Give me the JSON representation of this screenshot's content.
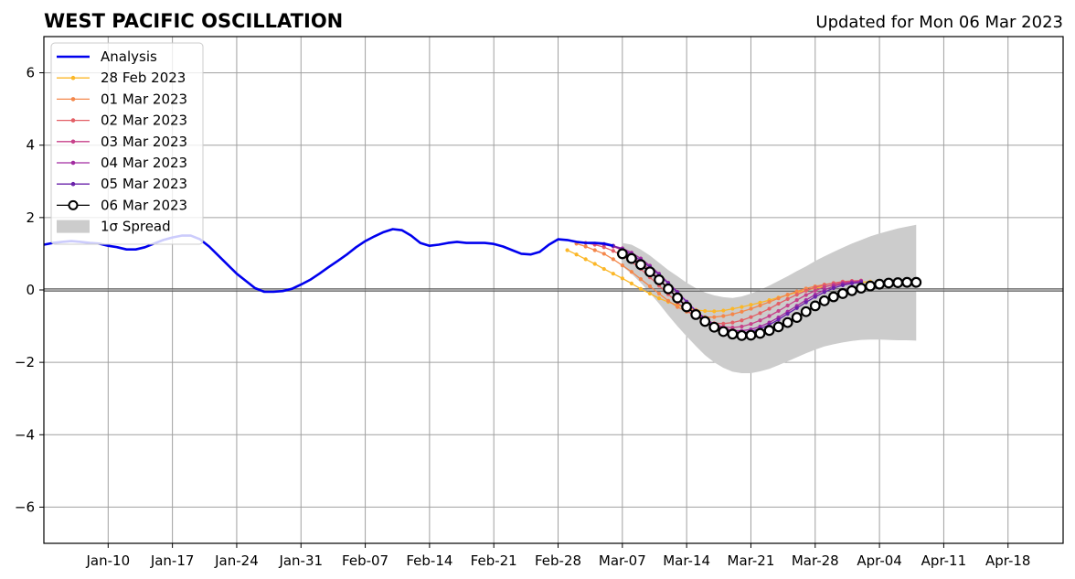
{
  "chart_data": {
    "type": "line",
    "title": "WEST PACIFIC OSCILLATION",
    "subtitle": "Updated for Mon 06 Mar 2023",
    "xlabel": "",
    "ylabel": "",
    "ylim": [
      -7,
      7
    ],
    "yticks": [
      -6,
      -4,
      -2,
      0,
      2,
      4,
      6
    ],
    "ytick_labels": [
      "−6",
      "−4",
      "−2",
      "0",
      "2",
      "4",
      "6"
    ],
    "xlim": [
      "2023-01-03",
      "2023-04-24"
    ],
    "xticks": [
      "2023-01-10",
      "2023-01-17",
      "2023-01-24",
      "2023-01-31",
      "2023-02-07",
      "2023-02-14",
      "2023-02-21",
      "2023-02-28",
      "2023-03-07",
      "2023-03-14",
      "2023-03-21",
      "2023-03-28",
      "2023-04-04",
      "2023-04-11",
      "2023-04-18"
    ],
    "xtick_labels": [
      "Jan-10",
      "Jan-17",
      "Jan-24",
      "Jan-31",
      "Feb-07",
      "Feb-14",
      "Feb-21",
      "Feb-28",
      "Mar-07",
      "Mar-14",
      "Mar-21",
      "Mar-28",
      "Apr-04",
      "Apr-11",
      "Apr-18"
    ],
    "grid": true,
    "legend_position": "top-left",
    "legend": [
      "Analysis",
      "28 Feb 2023",
      "01 Mar 2023",
      "02 Mar 2023",
      "03 Mar 2023",
      "04 Mar 2023",
      "05 Mar 2023",
      "06 Mar 2023",
      "1σ Spread"
    ],
    "analysis": {
      "name": "Analysis",
      "color": "#0000ee",
      "x": [
        "2023-01-03",
        "2023-01-04",
        "2023-01-05",
        "2023-01-06",
        "2023-01-07",
        "2023-01-08",
        "2023-01-09",
        "2023-01-10",
        "2023-01-11",
        "2023-01-12",
        "2023-01-13",
        "2023-01-14",
        "2023-01-15",
        "2023-01-16",
        "2023-01-17",
        "2023-01-18",
        "2023-01-19",
        "2023-01-20",
        "2023-01-21",
        "2023-01-22",
        "2023-01-23",
        "2023-01-24",
        "2023-01-25",
        "2023-01-26",
        "2023-01-27",
        "2023-01-28",
        "2023-01-29",
        "2023-01-30",
        "2023-01-31",
        "2023-02-01",
        "2023-02-02",
        "2023-02-03",
        "2023-02-04",
        "2023-02-05",
        "2023-02-06",
        "2023-02-07",
        "2023-02-08",
        "2023-02-09",
        "2023-02-10",
        "2023-02-11",
        "2023-02-12",
        "2023-02-13",
        "2023-02-14",
        "2023-02-15",
        "2023-02-16",
        "2023-02-17",
        "2023-02-18",
        "2023-02-19",
        "2023-02-20",
        "2023-02-21",
        "2023-02-22",
        "2023-02-23",
        "2023-02-24",
        "2023-02-25",
        "2023-02-26",
        "2023-02-27",
        "2023-02-28",
        "2023-03-01",
        "2023-03-02",
        "2023-03-03",
        "2023-03-04",
        "2023-03-05",
        "2023-03-06"
      ],
      "values": [
        1.25,
        1.3,
        1.33,
        1.35,
        1.33,
        1.3,
        1.28,
        1.22,
        1.18,
        1.12,
        1.12,
        1.18,
        1.28,
        1.38,
        1.45,
        1.5,
        1.5,
        1.4,
        1.2,
        0.95,
        0.7,
        0.45,
        0.25,
        0.05,
        -0.05,
        -0.05,
        -0.03,
        0.03,
        0.15,
        0.28,
        0.45,
        0.63,
        0.8,
        0.98,
        1.18,
        1.35,
        1.48,
        1.6,
        1.68,
        1.65,
        1.5,
        1.3,
        1.22,
        1.25,
        1.3,
        1.33,
        1.3,
        1.3,
        1.3,
        1.27,
        1.2,
        1.1,
        1.0,
        0.98,
        1.05,
        1.25,
        1.4,
        1.38,
        1.33,
        1.3,
        1.3,
        1.28,
        1.22
      ]
    },
    "series": [
      {
        "name": "28 Feb 2023",
        "color": "#fbb728",
        "x_start": "2023-03-01",
        "values": [
          1.1,
          0.98,
          0.85,
          0.72,
          0.58,
          0.45,
          0.32,
          0.18,
          0.03,
          -0.1,
          -0.23,
          -0.33,
          -0.42,
          -0.5,
          -0.55,
          -0.58,
          -0.59,
          -0.57,
          -0.52,
          -0.47,
          -0.41,
          -0.35,
          -0.28,
          -0.21,
          -0.14,
          -0.07,
          -0.01,
          0.05,
          0.09,
          0.13,
          0.16,
          0.19,
          0.21,
          0.23
        ]
      },
      {
        "name": "01 Mar 2023",
        "color": "#f4874a",
        "x_start": "2023-03-02",
        "values": [
          1.28,
          1.2,
          1.1,
          1.0,
          0.85,
          0.68,
          0.5,
          0.3,
          0.1,
          -0.1,
          -0.3,
          -0.47,
          -0.6,
          -0.7,
          -0.75,
          -0.75,
          -0.72,
          -0.67,
          -0.6,
          -0.52,
          -0.43,
          -0.33,
          -0.23,
          -0.13,
          -0.04,
          0.04,
          0.1,
          0.15,
          0.19,
          0.22,
          0.24,
          0.25
        ]
      },
      {
        "name": "02 Mar 2023",
        "color": "#e35f66",
        "x_start": "2023-03-03",
        "values": [
          1.3,
          1.25,
          1.18,
          1.08,
          0.95,
          0.78,
          0.58,
          0.35,
          0.12,
          -0.12,
          -0.35,
          -0.57,
          -0.73,
          -0.85,
          -0.92,
          -0.93,
          -0.9,
          -0.84,
          -0.75,
          -0.64,
          -0.52,
          -0.38,
          -0.25,
          -0.13,
          -0.02,
          0.07,
          0.14,
          0.19,
          0.23,
          0.25,
          0.26
        ]
      },
      {
        "name": "03 Mar 2023",
        "color": "#c7418a",
        "x_start": "2023-03-04",
        "values": [
          1.28,
          1.25,
          1.2,
          1.1,
          0.95,
          0.76,
          0.55,
          0.3,
          0.05,
          -0.2,
          -0.45,
          -0.66,
          -0.83,
          -0.95,
          -1.02,
          -1.04,
          -1.01,
          -0.94,
          -0.84,
          -0.72,
          -0.58,
          -0.43,
          -0.28,
          -0.14,
          -0.02,
          0.08,
          0.15,
          0.2,
          0.23,
          0.25
        ]
      },
      {
        "name": "04 Mar 2023",
        "color": "#a22ba0",
        "x_start": "2023-03-05",
        "values": [
          1.27,
          1.22,
          1.15,
          1.03,
          0.87,
          0.67,
          0.45,
          0.2,
          -0.05,
          -0.32,
          -0.57,
          -0.78,
          -0.95,
          -1.06,
          -1.12,
          -1.13,
          -1.09,
          -1.01,
          -0.9,
          -0.76,
          -0.6,
          -0.44,
          -0.28,
          -0.13,
          0.0,
          0.1,
          0.17,
          0.21,
          0.24
        ]
      },
      {
        "name": "05 Mar 2023",
        "color": "#6a22aa",
        "x_start": "2023-03-06",
        "values": [
          1.22,
          1.12,
          0.98,
          0.82,
          0.63,
          0.42,
          0.18,
          -0.07,
          -0.33,
          -0.58,
          -0.8,
          -0.98,
          -1.1,
          -1.17,
          -1.19,
          -1.15,
          -1.07,
          -0.96,
          -0.82,
          -0.66,
          -0.5,
          -0.34,
          -0.19,
          -0.06,
          0.05,
          0.13,
          0.18,
          0.21
        ]
      },
      {
        "name": "06 Mar 2023",
        "color": "#000000",
        "x_start": "2023-03-07",
        "values": [
          1.0,
          0.87,
          0.7,
          0.5,
          0.28,
          0.03,
          -0.22,
          -0.47,
          -0.68,
          -0.87,
          -1.03,
          -1.15,
          -1.22,
          -1.26,
          -1.25,
          -1.2,
          -1.12,
          -1.02,
          -0.9,
          -0.76,
          -0.6,
          -0.44,
          -0.3,
          -0.19,
          -0.1,
          -0.02,
          0.05,
          0.11,
          0.16,
          0.19,
          0.2,
          0.21,
          0.21
        ]
      }
    ],
    "spread": {
      "name": "1σ Spread",
      "color": "#cccccc",
      "x_start": "2023-03-07",
      "upper": [
        1.3,
        1.25,
        1.12,
        0.95,
        0.75,
        0.55,
        0.38,
        0.2,
        0.05,
        -0.07,
        -0.15,
        -0.2,
        -0.22,
        -0.18,
        -0.1,
        0.0,
        0.12,
        0.25,
        0.38,
        0.52,
        0.65,
        0.8,
        0.93,
        1.05,
        1.17,
        1.28,
        1.38,
        1.48,
        1.56,
        1.63,
        1.7,
        1.75,
        1.8
      ],
      "lower": [
        0.65,
        0.45,
        0.2,
        -0.08,
        -0.38,
        -0.7,
        -1.0,
        -1.28,
        -1.55,
        -1.8,
        -2.0,
        -2.15,
        -2.26,
        -2.3,
        -2.3,
        -2.25,
        -2.18,
        -2.08,
        -1.97,
        -1.86,
        -1.75,
        -1.65,
        -1.56,
        -1.5,
        -1.45,
        -1.41,
        -1.38,
        -1.37,
        -1.37,
        -1.38,
        -1.39,
        -1.39,
        -1.4
      ]
    }
  }
}
